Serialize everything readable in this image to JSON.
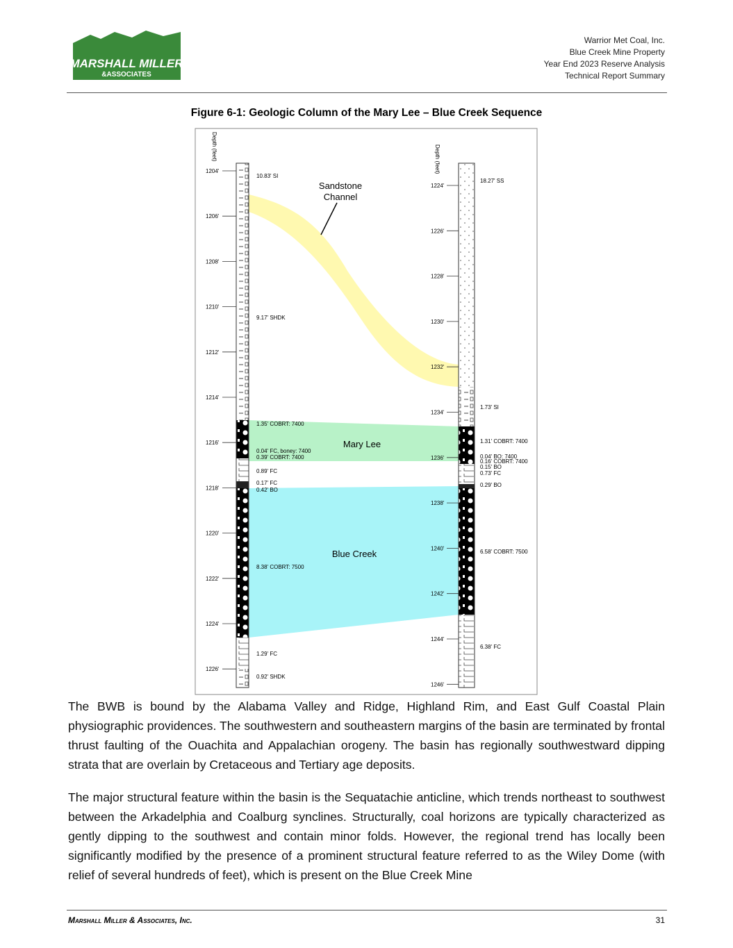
{
  "header": {
    "logo": {
      "name": "MARSHALL MILLER",
      "sub": "&ASSOCIATES"
    },
    "lines": [
      "Warrior Met Coal, Inc.",
      "Blue Creek Mine Property",
      "Year End 2023 Reserve Analysis",
      "Technical Report Summary"
    ]
  },
  "figure": {
    "caption": "Figure 6-1: Geologic Column of the Mary Lee – Blue Creek Sequence",
    "depth_label": "Depth (feet)",
    "left_depths": [
      "1204'",
      "1206'",
      "1208'",
      "1210'",
      "1212'",
      "1214'",
      "1216'",
      "1218'",
      "1220'",
      "1222'",
      "1224'",
      "1226'"
    ],
    "right_depths": [
      "1224'",
      "1226'",
      "1228'",
      "1230'",
      "1232'",
      "1234'",
      "1236'",
      "1238'",
      "1240'",
      "1242'",
      "1244'",
      "1246'"
    ],
    "left_layers": [
      "10.83' SI",
      "9.17' SHDK",
      "1.35' COBRT: 7400",
      "0.04' FC, boney: 7400",
      "0.39' COBRT: 7400",
      "0.89' FC",
      "0.17' FC",
      "0.42' BO",
      "8.38' COBRT: 7500",
      "1.29' FC",
      "0.92' SHDK"
    ],
    "right_layers": [
      "18.27' SS",
      "1.73' SI",
      "1.31' COBRT: 7400",
      "0.04' BO: 7400",
      "0.16' COBRT: 7400",
      "0.15' BO",
      "0.73' FC",
      "0.29' BO",
      "6.58' COBRT: 7500",
      "6.38' FC"
    ],
    "channel_label": [
      "Sandstone",
      "Channel"
    ],
    "seam_labels": [
      "Mary Lee",
      "Blue Creek"
    ]
  },
  "paragraphs": [
    "The BWB is bound by the Alabama Valley and Ridge, Highland Rim, and East Gulf Coastal Plain physiographic providences.  The southwestern and southeastern margins of the basin are terminated by frontal thrust faulting of the Ouachita and Appalachian orogeny.  The basin has regionally southwestward dipping strata that are overlain by Cretaceous and Tertiary age deposits.",
    "The major structural feature within the basin is the Sequatachie anticline, which trends northeast to southwest between the Arkadelphia and Coalburg synclines.  Structurally, coal horizons are typically characterized as gently dipping to the southwest and contain minor folds.  However, the regional trend has locally been significantly modified by the presence of a prominent structural feature referred to as the Wiley Dome (with relief of several hundreds of feet), which is present on the Blue Creek Mine"
  ],
  "footer": {
    "company": "Marshall Miller & Associates, Inc.",
    "page": "31"
  }
}
